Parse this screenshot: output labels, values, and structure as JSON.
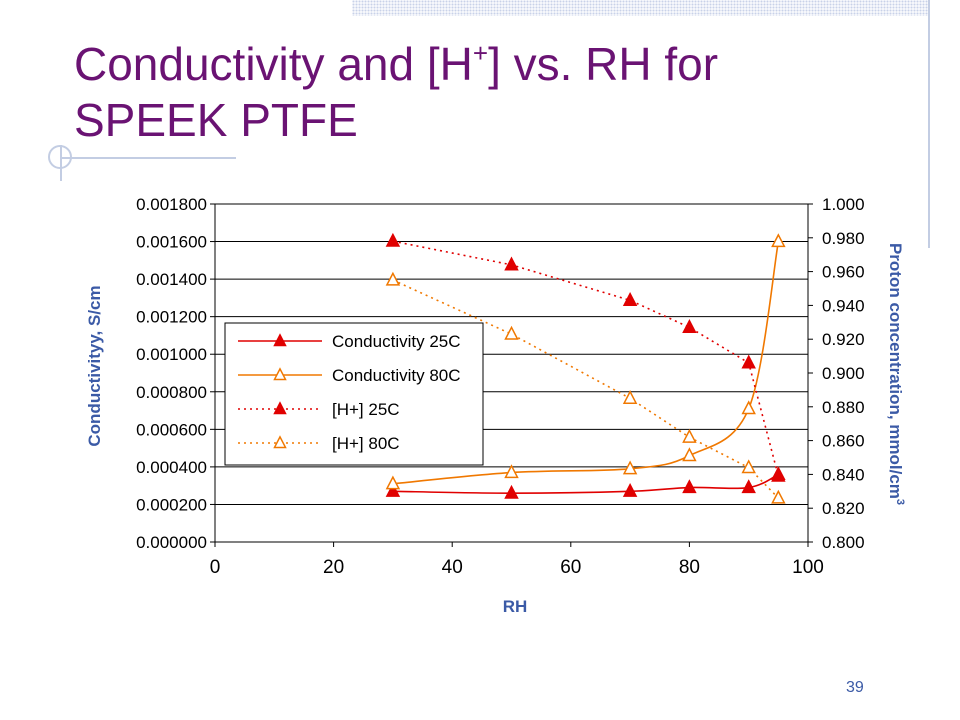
{
  "slide": {
    "title_part1": "Conductivity and [H",
    "title_sup": "+",
    "title_part2": "] vs. RH for",
    "title_line2": "SPEEK PTFE",
    "page_number": "39"
  },
  "colors": {
    "title": "#6a1373",
    "axis_label": "#3b5aa6",
    "series_25C": "#e00000",
    "series_80C": "#f07800",
    "plot_background": "#ffffff",
    "gridline": "#000000"
  },
  "chart_data": {
    "type": "line",
    "xlabel": "RH",
    "ylabel": "Conductivityy, S/cm",
    "y2label": "Proton concentration, mmol/cm",
    "y2label_sup": "3",
    "xlim": [
      0,
      100
    ],
    "ylim": [
      0,
      0.0018
    ],
    "y2lim": [
      0.8,
      1.0
    ],
    "x_ticks": [
      "0",
      "20",
      "40",
      "60",
      "80",
      "100"
    ],
    "x_tick_values": [
      0,
      20,
      40,
      60,
      80,
      100
    ],
    "y_ticks": [
      "0.000000",
      "0.000200",
      "0.000400",
      "0.000600",
      "0.000800",
      "0.001000",
      "0.001200",
      "0.001400",
      "0.001600",
      "0.001800"
    ],
    "y_tick_values": [
      0,
      0.0002,
      0.0004,
      0.0006,
      0.0008,
      0.001,
      0.0012,
      0.0014,
      0.0016,
      0.0018
    ],
    "y2_ticks": [
      "0.800",
      "0.820",
      "0.840",
      "0.860",
      "0.880",
      "0.900",
      "0.920",
      "0.940",
      "0.960",
      "0.980",
      "1.000"
    ],
    "y2_tick_values": [
      0.8,
      0.82,
      0.84,
      0.86,
      0.88,
      0.9,
      0.92,
      0.94,
      0.96,
      0.98,
      1.0
    ],
    "grid": "horizontal",
    "legend_position": "left",
    "series": [
      {
        "name": "Conductivity 25C",
        "axis": "left",
        "color": "#e00000",
        "line": "solid",
        "marker": "filled-triangle",
        "x": [
          30,
          50,
          70,
          80,
          90,
          95
        ],
        "y": [
          0.00027,
          0.00026,
          0.00027,
          0.00029,
          0.00029,
          0.00036
        ]
      },
      {
        "name": "Conductivity 80C",
        "axis": "left",
        "color": "#f07800",
        "line": "solid",
        "marker": "open-triangle",
        "x": [
          30,
          50,
          70,
          80,
          90,
          95
        ],
        "y": [
          0.00031,
          0.00037,
          0.00039,
          0.00046,
          0.00071,
          0.0016
        ]
      },
      {
        "name": "[H+] 25C",
        "axis": "right",
        "color": "#e00000",
        "line": "dotted",
        "marker": "filled-triangle",
        "x": [
          30,
          50,
          70,
          80,
          90,
          95
        ],
        "y": [
          0.978,
          0.964,
          0.943,
          0.927,
          0.906,
          0.839
        ]
      },
      {
        "name": "[H+] 80C",
        "axis": "right",
        "color": "#f07800",
        "line": "dotted",
        "marker": "open-triangle",
        "x": [
          30,
          50,
          70,
          80,
          90,
          95
        ],
        "y": [
          0.955,
          0.923,
          0.885,
          0.862,
          0.844,
          0.826
        ]
      }
    ]
  }
}
